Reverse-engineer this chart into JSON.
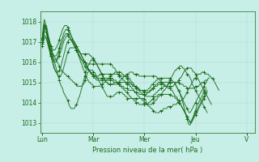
{
  "bg_color": "#c8eee8",
  "grid_color": "#b0d8d0",
  "line_color": "#1a6b1a",
  "marker_color": "#1a6b1a",
  "xlabel": "Pression niveau de la mer( hPa )",
  "x_tick_labels": [
    "Lun",
    "Mar",
    "Mer",
    "Jeu",
    "V"
  ],
  "x_tick_positions": [
    0,
    48,
    96,
    144,
    192
  ],
  "ylim": [
    1012.5,
    1018.5
  ],
  "yticks": [
    1013,
    1014,
    1015,
    1016,
    1017,
    1018
  ],
  "xlim": [
    -2,
    200
  ],
  "series": [
    [
      1017.1,
      1017.8,
      1018.1,
      1017.9,
      1017.5,
      1017.2,
      1017.0,
      1016.8,
      1016.6,
      1016.5,
      1016.4,
      1016.3,
      1016.2,
      1016.1,
      1016.0,
      1015.9,
      1015.8,
      1015.7,
      1015.6,
      1015.5,
      1015.5,
      1015.4,
      1015.4,
      1015.3,
      1015.3,
      1015.2,
      1015.2,
      1015.1,
      1015.1,
      1015.0,
      1015.0,
      1014.9,
      1014.9,
      1014.8,
      1014.8,
      1014.8,
      1014.8,
      1014.8,
      1014.9,
      1014.9,
      1015.1,
      1015.2,
      1015.4,
      1015.5,
      1015.6,
      1015.6,
      1015.6,
      1015.6,
      1015.5,
      1015.5,
      1015.4,
      1015.3,
      1015.2,
      1015.1,
      1015.0,
      1014.9,
      1014.8,
      1014.7,
      1014.6,
      1014.5,
      1014.4,
      1014.3,
      1014.3,
      1014.3,
      1014.3,
      1014.3,
      1014.3,
      1014.3,
      1014.4,
      1014.4,
      1014.5,
      1014.5,
      1014.5,
      1014.5,
      1014.5,
      1014.5,
      1014.4,
      1014.4,
      1014.3,
      1014.3,
      1014.2,
      1014.2,
      1014.2,
      1014.2,
      1014.2,
      1014.2,
      1014.2,
      1014.2,
      1014.2,
      1014.2,
      1014.2,
      1014.2,
      1014.2,
      1014.2,
      1014.2,
      1014.2,
      1014.2,
      1014.1,
      1014.0,
      1013.9,
      1013.8,
      1013.8,
      1013.7,
      1013.7,
      1013.6,
      1013.6,
      1013.5,
      1013.5,
      1013.5,
      1013.5,
      1013.5,
      1013.6,
      1013.6,
      1013.6,
      1013.7,
      1013.7,
      1013.7,
      1013.7,
      1013.8,
      1013.8,
      1013.8,
      1013.8,
      1013.8,
      1013.9,
      1013.9,
      1013.9,
      1013.9,
      1014.0,
      1014.0,
      1014.0,
      1014.1,
      1014.1,
      1014.2,
      1014.2,
      1014.3,
      1014.4,
      1014.5,
      1014.6,
      1014.7,
      1014.8,
      1014.9,
      1015.0,
      1015.1,
      1015.2,
      1015.2,
      1015.3,
      1015.4,
      1015.4,
      1015.4,
      1015.4,
      1015.5,
      1015.5,
      1015.5,
      1015.4,
      1015.4,
      1015.4,
      1015.4,
      1015.3,
      1015.3,
      1015.2,
      1015.2,
      1015.1,
      1015.0,
      1014.9,
      1014.8,
      1014.7,
      1014.6
    ],
    [
      1017.0,
      1017.2,
      1017.5,
      1017.8,
      1017.8,
      1017.5,
      1017.2,
      1017.0,
      1016.8,
      1016.5,
      1016.3,
      1016.1,
      1015.9,
      1015.7,
      1015.5,
      1015.3,
      1015.1,
      1014.9,
      1014.8,
      1014.7,
      1014.5,
      1014.4,
      1014.3,
      1014.2,
      1014.1,
      1013.9,
      1013.8,
      1013.7,
      1013.7,
      1013.7,
      1013.7,
      1013.8,
      1013.9,
      1014.0,
      1014.2,
      1014.3,
      1014.5,
      1014.7,
      1014.9,
      1015.1,
      1015.3,
      1015.5,
      1015.7,
      1015.8,
      1015.9,
      1016.0,
      1016.1,
      1016.1,
      1016.1,
      1016.0,
      1016.0,
      1015.9,
      1015.8,
      1015.7,
      1015.6,
      1015.5,
      1015.4,
      1015.3,
      1015.2,
      1015.1,
      1015.0,
      1015.0,
      1014.9,
      1014.9,
      1014.9,
      1014.9,
      1014.9,
      1014.9,
      1014.9,
      1014.9,
      1014.9,
      1015.0,
      1015.0,
      1015.1,
      1015.1,
      1015.2,
      1015.2,
      1015.3,
      1015.3,
      1015.4,
      1015.4,
      1015.4,
      1015.5,
      1015.5,
      1015.5,
      1015.5,
      1015.4,
      1015.4,
      1015.4,
      1015.4,
      1015.4,
      1015.3,
      1015.3,
      1015.3,
      1015.3,
      1015.3,
      1015.3,
      1015.3,
      1015.3,
      1015.3,
      1015.3,
      1015.3,
      1015.3,
      1015.3,
      1015.3,
      1015.3,
      1015.3,
      1015.3,
      1015.2,
      1015.2,
      1015.1,
      1015.1,
      1015.0,
      1015.0,
      1014.9,
      1014.9,
      1014.8,
      1014.8,
      1014.8,
      1014.8,
      1014.8,
      1014.8,
      1014.8,
      1014.8,
      1014.9,
      1014.9,
      1015.0,
      1015.0,
      1015.1,
      1015.2,
      1015.2,
      1015.3,
      1015.4,
      1015.5,
      1015.6,
      1015.6,
      1015.7,
      1015.7,
      1015.7,
      1015.7,
      1015.7,
      1015.6,
      1015.5,
      1015.5,
      1015.4,
      1015.3,
      1015.2,
      1015.1,
      1015.0,
      1014.9,
      1014.8,
      1014.7,
      1014.6,
      1014.5,
      1014.4,
      1014.3,
      1014.2,
      1014.1,
      1014.0,
      1013.9
    ],
    [
      1017.1,
      1017.5,
      1017.9,
      1017.8,
      1017.6,
      1017.3,
      1017.0,
      1016.7,
      1016.4,
      1016.2,
      1016.0,
      1015.8,
      1015.6,
      1015.5,
      1015.4,
      1015.3,
      1015.3,
      1015.3,
      1015.4,
      1015.5,
      1015.7,
      1015.9,
      1016.1,
      1016.3,
      1016.5,
      1016.6,
      1016.7,
      1016.7,
      1016.7,
      1016.7,
      1016.7,
      1016.7,
      1016.6,
      1016.6,
      1016.5,
      1016.5,
      1016.4,
      1016.4,
      1016.4,
      1016.4,
      1016.4,
      1016.4,
      1016.4,
      1016.4,
      1016.4,
      1016.3,
      1016.3,
      1016.2,
      1016.2,
      1016.1,
      1016.0,
      1015.9,
      1015.8,
      1015.7,
      1015.6,
      1015.5,
      1015.4,
      1015.3,
      1015.2,
      1015.1,
      1015.0,
      1015.0,
      1014.9,
      1014.9,
      1014.9,
      1014.9,
      1014.9,
      1014.9,
      1015.0,
      1015.0,
      1015.0,
      1015.0,
      1015.0,
      1015.0,
      1015.0,
      1015.0,
      1015.0,
      1015.0,
      1015.0,
      1014.9,
      1014.9,
      1014.9,
      1014.8,
      1014.8,
      1014.7,
      1014.7,
      1014.6,
      1014.5,
      1014.5,
      1014.4,
      1014.3,
      1014.3,
      1014.2,
      1014.2,
      1014.1,
      1014.1,
      1014.0,
      1014.0,
      1013.9,
      1013.9,
      1013.9,
      1013.9,
      1013.9,
      1013.9,
      1014.0,
      1014.0,
      1014.1,
      1014.1,
      1014.2,
      1014.3,
      1014.3,
      1014.4,
      1014.4,
      1014.5,
      1014.6,
      1014.6,
      1014.7,
      1014.8,
      1014.9,
      1015.0,
      1015.1,
      1015.2,
      1015.3,
      1015.4,
      1015.5,
      1015.6,
      1015.6,
      1015.7,
      1015.7,
      1015.8,
      1015.8,
      1015.8,
      1015.7,
      1015.7,
      1015.6,
      1015.5,
      1015.4,
      1015.4,
      1015.3,
      1015.2,
      1015.1,
      1014.9,
      1014.8,
      1014.7,
      1014.6,
      1014.5,
      1014.4,
      1014.3,
      1014.2,
      1014.1,
      1014.0,
      1013.9,
      1013.8,
      1013.7,
      1013.6,
      1013.5
    ],
    [
      1017.2,
      1017.6,
      1017.8,
      1017.7,
      1017.5,
      1017.2,
      1016.9,
      1016.6,
      1016.3,
      1016.1,
      1015.9,
      1015.7,
      1015.6,
      1015.5,
      1015.5,
      1015.5,
      1015.6,
      1015.7,
      1015.9,
      1016.1,
      1016.3,
      1016.5,
      1016.7,
      1016.9,
      1017.0,
      1017.1,
      1017.1,
      1017.1,
      1017.1,
      1017.0,
      1017.0,
      1016.9,
      1016.8,
      1016.7,
      1016.6,
      1016.5,
      1016.4,
      1016.3,
      1016.2,
      1016.1,
      1016.0,
      1015.9,
      1015.8,
      1015.7,
      1015.6,
      1015.5,
      1015.4,
      1015.4,
      1015.3,
      1015.3,
      1015.3,
      1015.3,
      1015.3,
      1015.3,
      1015.4,
      1015.4,
      1015.4,
      1015.4,
      1015.4,
      1015.4,
      1015.4,
      1015.4,
      1015.4,
      1015.4,
      1015.4,
      1015.4,
      1015.4,
      1015.4,
      1015.4,
      1015.4,
      1015.4,
      1015.4,
      1015.3,
      1015.3,
      1015.3,
      1015.3,
      1015.3,
      1015.3,
      1015.3,
      1015.3,
      1015.3,
      1015.2,
      1015.2,
      1015.1,
      1015.0,
      1015.0,
      1014.9,
      1014.8,
      1014.8,
      1014.7,
      1014.6,
      1014.6,
      1014.5,
      1014.5,
      1014.4,
      1014.4,
      1014.4,
      1014.3,
      1014.3,
      1014.3,
      1014.3,
      1014.3,
      1014.3,
      1014.3,
      1014.3,
      1014.4,
      1014.4,
      1014.5,
      1014.5,
      1014.6,
      1014.6,
      1014.7,
      1014.7,
      1014.7,
      1014.8,
      1014.8,
      1014.8,
      1014.8,
      1014.9,
      1014.9,
      1015.0,
      1015.0,
      1015.0,
      1015.0,
      1015.0,
      1015.0,
      1015.0,
      1015.0,
      1015.0,
      1014.9,
      1014.9,
      1014.9,
      1014.9,
      1014.8,
      1014.8,
      1014.8,
      1014.7,
      1014.7,
      1014.7,
      1014.7,
      1014.7,
      1014.7,
      1014.7,
      1014.7,
      1014.8,
      1014.8,
      1014.8,
      1014.8,
      1014.9,
      1014.9,
      1015.0,
      1015.0,
      1015.0,
      1015.1,
      1015.1,
      1015.1,
      1015.2,
      1015.2
    ],
    [
      1016.8,
      1017.0,
      1017.2,
      1017.2,
      1017.1,
      1016.9,
      1016.7,
      1016.5,
      1016.3,
      1016.2,
      1016.1,
      1016.0,
      1016.0,
      1016.0,
      1016.1,
      1016.2,
      1016.3,
      1016.5,
      1016.6,
      1016.8,
      1017.0,
      1017.1,
      1017.2,
      1017.3,
      1017.3,
      1017.2,
      1017.2,
      1017.1,
      1017.0,
      1016.9,
      1016.8,
      1016.7,
      1016.6,
      1016.5,
      1016.4,
      1016.3,
      1016.2,
      1016.1,
      1016.1,
      1016.0,
      1016.0,
      1015.9,
      1015.9,
      1015.9,
      1015.9,
      1015.9,
      1015.9,
      1015.9,
      1015.9,
      1015.9,
      1015.9,
      1015.9,
      1015.9,
      1015.9,
      1015.9,
      1015.9,
      1015.9,
      1015.9,
      1015.9,
      1015.9,
      1015.9,
      1015.9,
      1015.9,
      1015.9,
      1015.9,
      1015.9,
      1015.8,
      1015.7,
      1015.7,
      1015.6,
      1015.5,
      1015.4,
      1015.4,
      1015.3,
      1015.2,
      1015.2,
      1015.1,
      1015.1,
      1015.0,
      1015.0,
      1015.0,
      1015.0,
      1014.9,
      1014.9,
      1014.9,
      1014.8,
      1014.8,
      1014.8,
      1014.8,
      1014.7,
      1014.7,
      1014.7,
      1014.6,
      1014.6,
      1014.6,
      1014.5,
      1014.5,
      1014.5,
      1014.5,
      1014.5,
      1014.5,
      1014.6,
      1014.6,
      1014.7,
      1014.7,
      1014.8,
      1014.8,
      1014.9,
      1014.9,
      1015.0,
      1015.0,
      1015.0,
      1015.0,
      1015.0,
      1015.0,
      1015.0,
      1015.0,
      1015.0,
      1015.0,
      1015.0,
      1015.0,
      1015.0,
      1015.0,
      1015.0,
      1015.0,
      1014.9,
      1014.8,
      1014.7,
      1014.6,
      1014.5,
      1014.3,
      1014.2,
      1014.0,
      1013.8,
      1013.6,
      1013.4,
      1013.2,
      1013.0,
      1012.9,
      1012.9,
      1013.0,
      1013.1,
      1013.3,
      1013.5,
      1013.6,
      1013.8,
      1013.9,
      1014.0,
      1014.1,
      1014.2,
      1014.3,
      1014.4,
      1014.5,
      1014.6,
      1014.7
    ],
    [
      1016.9,
      1017.1,
      1017.3,
      1017.3,
      1017.2,
      1017.0,
      1016.8,
      1016.6,
      1016.4,
      1016.3,
      1016.2,
      1016.1,
      1016.1,
      1016.1,
      1016.2,
      1016.3,
      1016.5,
      1016.7,
      1016.9,
      1017.0,
      1017.2,
      1017.3,
      1017.4,
      1017.4,
      1017.4,
      1017.3,
      1017.2,
      1017.1,
      1017.0,
      1016.9,
      1016.8,
      1016.7,
      1016.6,
      1016.5,
      1016.4,
      1016.3,
      1016.2,
      1016.1,
      1016.0,
      1015.9,
      1015.8,
      1015.7,
      1015.7,
      1015.6,
      1015.6,
      1015.5,
      1015.5,
      1015.4,
      1015.4,
      1015.3,
      1015.3,
      1015.2,
      1015.2,
      1015.2,
      1015.2,
      1015.2,
      1015.2,
      1015.2,
      1015.2,
      1015.2,
      1015.2,
      1015.2,
      1015.2,
      1015.2,
      1015.2,
      1015.2,
      1015.2,
      1015.1,
      1015.1,
      1015.1,
      1015.0,
      1015.0,
      1014.9,
      1014.9,
      1014.8,
      1014.8,
      1014.8,
      1014.7,
      1014.7,
      1014.7,
      1014.7,
      1014.6,
      1014.6,
      1014.6,
      1014.6,
      1014.6,
      1014.6,
      1014.5,
      1014.5,
      1014.5,
      1014.5,
      1014.4,
      1014.4,
      1014.4,
      1014.4,
      1014.4,
      1014.4,
      1014.4,
      1014.4,
      1014.5,
      1014.5,
      1014.5,
      1014.6,
      1014.6,
      1014.7,
      1014.7,
      1014.8,
      1014.8,
      1014.8,
      1014.9,
      1014.9,
      1014.9,
      1014.9,
      1014.9,
      1014.9,
      1014.8,
      1014.8,
      1014.8,
      1014.7,
      1014.7,
      1014.7,
      1014.6,
      1014.6,
      1014.5,
      1014.4,
      1014.3,
      1014.3,
      1014.2,
      1014.1,
      1014.0,
      1013.9,
      1013.8,
      1013.7,
      1013.6,
      1013.5,
      1013.4,
      1013.3,
      1013.2,
      1013.1,
      1013.0,
      1013.0,
      1013.1,
      1013.2,
      1013.3,
      1013.4,
      1013.5,
      1013.6,
      1013.7,
      1013.8,
      1013.9,
      1014.0,
      1014.1,
      1014.2,
      1014.3,
      1014.4,
      1014.5
    ],
    [
      1017.0,
      1017.2,
      1017.5,
      1017.5,
      1017.4,
      1017.2,
      1017.0,
      1016.8,
      1016.6,
      1016.5,
      1016.4,
      1016.3,
      1016.3,
      1016.3,
      1016.4,
      1016.5,
      1016.7,
      1016.9,
      1017.1,
      1017.2,
      1017.4,
      1017.5,
      1017.6,
      1017.6,
      1017.6,
      1017.5,
      1017.4,
      1017.3,
      1017.2,
      1017.1,
      1017.0,
      1016.9,
      1016.8,
      1016.7,
      1016.6,
      1016.5,
      1016.4,
      1016.3,
      1016.2,
      1016.1,
      1016.0,
      1015.9,
      1015.8,
      1015.7,
      1015.6,
      1015.5,
      1015.4,
      1015.4,
      1015.3,
      1015.2,
      1015.2,
      1015.1,
      1015.1,
      1015.1,
      1015.1,
      1015.1,
      1015.1,
      1015.1,
      1015.1,
      1015.1,
      1015.1,
      1015.1,
      1015.1,
      1015.1,
      1015.1,
      1015.1,
      1015.1,
      1015.0,
      1015.0,
      1015.0,
      1015.0,
      1014.9,
      1014.9,
      1014.8,
      1014.8,
      1014.7,
      1014.7,
      1014.6,
      1014.6,
      1014.5,
      1014.5,
      1014.4,
      1014.3,
      1014.3,
      1014.2,
      1014.2,
      1014.1,
      1014.1,
      1014.0,
      1014.0,
      1014.0,
      1013.9,
      1013.9,
      1013.9,
      1013.9,
      1013.9,
      1013.9,
      1013.9,
      1013.9,
      1013.9,
      1014.0,
      1014.0,
      1014.1,
      1014.1,
      1014.2,
      1014.2,
      1014.3,
      1014.3,
      1014.3,
      1014.4,
      1014.4,
      1014.4,
      1014.4,
      1014.4,
      1014.4,
      1014.4,
      1014.4,
      1014.4,
      1014.4,
      1014.4,
      1014.4,
      1014.4,
      1014.3,
      1014.3,
      1014.3,
      1014.2,
      1014.2,
      1014.1,
      1014.0,
      1014.0,
      1013.9,
      1013.8,
      1013.7,
      1013.6,
      1013.5,
      1013.4,
      1013.3,
      1013.2,
      1013.1,
      1013.0,
      1013.1,
      1013.2,
      1013.3,
      1013.4,
      1013.5,
      1013.6,
      1013.7,
      1013.8,
      1013.9,
      1014.0,
      1014.1,
      1014.2,
      1014.3,
      1014.4,
      1014.5,
      1014.6
    ],
    [
      1017.1,
      1017.4,
      1017.7,
      1017.7,
      1017.6,
      1017.4,
      1017.2,
      1017.0,
      1016.8,
      1016.7,
      1016.6,
      1016.6,
      1016.6,
      1016.7,
      1016.8,
      1016.9,
      1017.1,
      1017.3,
      1017.4,
      1017.6,
      1017.7,
      1017.8,
      1017.8,
      1017.8,
      1017.7,
      1017.6,
      1017.5,
      1017.3,
      1017.2,
      1017.0,
      1016.9,
      1016.8,
      1016.6,
      1016.5,
      1016.3,
      1016.2,
      1016.0,
      1015.9,
      1015.7,
      1015.6,
      1015.5,
      1015.3,
      1015.2,
      1015.1,
      1015.0,
      1015.0,
      1014.9,
      1014.9,
      1014.8,
      1014.8,
      1014.8,
      1014.8,
      1014.8,
      1014.8,
      1014.8,
      1014.9,
      1014.9,
      1014.9,
      1015.0,
      1015.0,
      1015.1,
      1015.1,
      1015.2,
      1015.2,
      1015.3,
      1015.3,
      1015.4,
      1015.4,
      1015.5,
      1015.5,
      1015.5,
      1015.5,
      1015.5,
      1015.5,
      1015.5,
      1015.4,
      1015.4,
      1015.3,
      1015.3,
      1015.2,
      1015.2,
      1015.1,
      1015.0,
      1015.0,
      1014.9,
      1014.9,
      1014.8,
      1014.8,
      1014.7,
      1014.7,
      1014.7,
      1014.6,
      1014.6,
      1014.6,
      1014.6,
      1014.6,
      1014.6,
      1014.6,
      1014.6,
      1014.6,
      1014.7,
      1014.7,
      1014.8,
      1014.9,
      1014.9,
      1015.0,
      1015.0,
      1015.1,
      1015.1,
      1015.2,
      1015.2,
      1015.2,
      1015.2,
      1015.2,
      1015.2,
      1015.2,
      1015.2,
      1015.2,
      1015.2,
      1015.2,
      1015.2,
      1015.1,
      1015.1,
      1015.0,
      1015.0,
      1014.9,
      1014.8,
      1014.7,
      1014.6,
      1014.5,
      1014.4,
      1014.3,
      1014.2,
      1014.0,
      1013.9,
      1013.8,
      1013.7,
      1013.6,
      1013.5,
      1013.5,
      1013.6,
      1013.7,
      1013.8,
      1013.9,
      1014.0,
      1014.1,
      1014.2,
      1014.3,
      1014.4,
      1014.5,
      1014.6,
      1014.7,
      1014.8,
      1014.9,
      1015.0,
      1015.1
    ]
  ]
}
